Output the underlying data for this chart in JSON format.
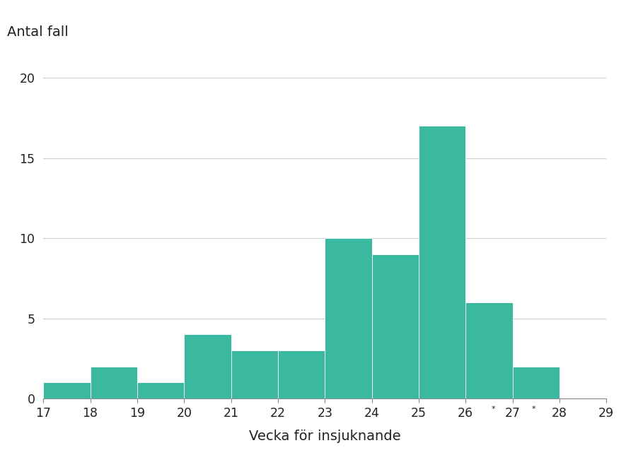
{
  "bar_centers": [
    17.5,
    18.5,
    19.5,
    20.5,
    21.5,
    22.5,
    23.5,
    24.5,
    25.5,
    26.5,
    27.5
  ],
  "values": [
    1,
    2,
    1,
    4,
    3,
    3,
    10,
    9,
    17,
    6,
    2
  ],
  "bar_color": "#3ab9a0",
  "bar_edge_color": "#ffffff",
  "bar_width": 1.0,
  "xlabel": "Vecka för insjuknande",
  "ylabel": "Antal fall",
  "xlim": [
    17,
    29
  ],
  "ylim": [
    0,
    22
  ],
  "xtick_positions": [
    17,
    18,
    19,
    20,
    21,
    22,
    23,
    24,
    25,
    26,
    27,
    28,
    29
  ],
  "xtick_labels": [
    "17",
    "18",
    "19",
    "20",
    "21",
    "22",
    "23",
    "24",
    "25",
    "26",
    "27*",
    "28*",
    "29"
  ],
  "xtick_special_indices": [
    10,
    11
  ],
  "ytick_positions": [
    0,
    5,
    10,
    15,
    20
  ],
  "ytick_labels": [
    "0",
    "5",
    "10",
    "15",
    "20"
  ],
  "grid_color": "#cccccc",
  "background_color": "#ffffff",
  "font_color": "#222222",
  "label_fontsize": 14,
  "tick_fontsize": 12.5,
  "ylabel_fontsize": 14
}
